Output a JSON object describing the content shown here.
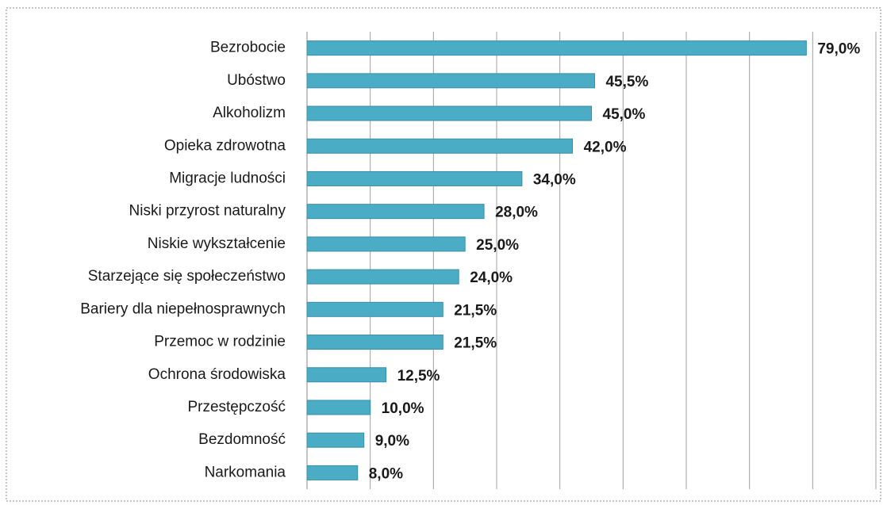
{
  "chart_data": {
    "type": "bar",
    "orientation": "horizontal",
    "categories": [
      "Bezrobocie",
      "Ubóstwo",
      "Alkoholizm",
      "Opieka zdrowotna",
      "Migracje ludności",
      "Niski przyrost naturalny",
      "Niskie wykształcenie",
      "Starzejące się społeczeństwo",
      "Bariery dla niepełnosprawnych",
      "Przemoc w rodzinie",
      "Ochrona środowiska",
      "Przestępczość",
      "Bezdomność",
      "Narkomania"
    ],
    "values": [
      79.0,
      45.5,
      45.0,
      42.0,
      34.0,
      28.0,
      25.0,
      24.0,
      21.5,
      21.5,
      12.5,
      10.0,
      9.0,
      8.0
    ],
    "value_labels": [
      "79,0%",
      "45,5%",
      "45,0%",
      "42,0%",
      "34,0%",
      "28,0%",
      "25,0%",
      "24,0%",
      "21,5%",
      "21,5%",
      "12,5%",
      "10,0%",
      "9,0%",
      "8,0%"
    ],
    "color": "#4bacc6",
    "xlim": [
      0,
      90
    ],
    "xticks": [
      0,
      10,
      20,
      30,
      40,
      50,
      60,
      70,
      80,
      90
    ],
    "grid": true
  }
}
